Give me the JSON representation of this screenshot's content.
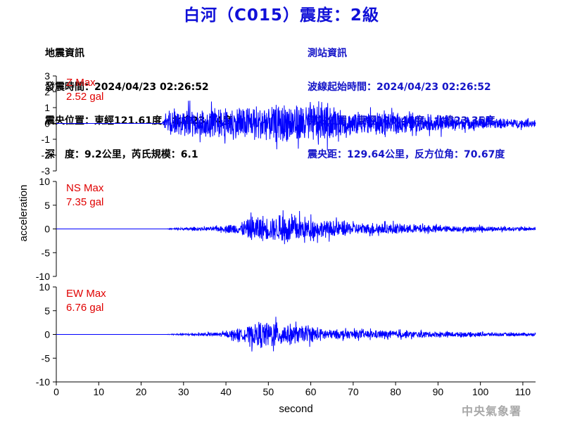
{
  "title": "白河（C015）震度：2級",
  "info_left": {
    "heading": "地震資訊",
    "origin_time": "發震時間：2024/04/23 02:26:52",
    "epicenter": "震央位置：東經121.61度，北緯23.74度",
    "depth_magnitude": "深　度：9.2公里，芮氏規模：6.1"
  },
  "info_right": {
    "heading": "測站資訊",
    "wave_start": "波線起始時間：2024/04/23 02:26:52",
    "station_location": "測站位置：東經120.41度，北緯23.35度",
    "distance_azimuth": "震央距：129.64公里，反方位角：70.67度"
  },
  "watermark": "中央氣象署",
  "colors": {
    "signal": "#0000ff",
    "label": "#e00000",
    "title": "#1010d8",
    "station_info": "#1414c8"
  },
  "chart_data": {
    "type": "line",
    "xlabel": "second",
    "ylabel": "acceleration",
    "xlim": [
      0,
      113
    ],
    "xticks": [
      0,
      10,
      20,
      30,
      40,
      50,
      60,
      70,
      80,
      90,
      100,
      110
    ],
    "panels": [
      {
        "component": "Z",
        "max_label": "Z Max",
        "max_value": "2.52 gal",
        "ylim": [
          -3,
          3
        ],
        "yticks": [
          3,
          2,
          1,
          0,
          -1,
          -2,
          -3
        ],
        "envelope": [
          {
            "t": 0,
            "amp": 0
          },
          {
            "t": 24.8,
            "amp": 0
          },
          {
            "t": 26,
            "amp": 0.9
          },
          {
            "t": 28,
            "amp": 1.5
          },
          {
            "t": 32,
            "amp": 1.7
          },
          {
            "t": 36,
            "amp": 1.7
          },
          {
            "t": 44,
            "amp": 1.9
          },
          {
            "t": 50,
            "amp": 2.1
          },
          {
            "t": 56,
            "amp": 2.2
          },
          {
            "t": 62,
            "amp": 2.3
          },
          {
            "t": 66,
            "amp": 1.6
          },
          {
            "t": 75,
            "amp": 1.2
          },
          {
            "t": 85,
            "amp": 1.1
          },
          {
            "t": 95,
            "amp": 0.8
          },
          {
            "t": 105,
            "amp": 0.55
          },
          {
            "t": 113,
            "amp": 0.45
          }
        ]
      },
      {
        "component": "NS",
        "max_label": "NS Max",
        "max_value": "7.35 gal",
        "ylim": [
          -10,
          10
        ],
        "yticks": [
          10,
          5,
          0,
          -5,
          -10
        ],
        "envelope": [
          {
            "t": 0,
            "amp": 0
          },
          {
            "t": 26,
            "amp": 0
          },
          {
            "t": 28,
            "amp": 0.4
          },
          {
            "t": 35,
            "amp": 0.7
          },
          {
            "t": 40,
            "amp": 1.2
          },
          {
            "t": 44,
            "amp": 2.8
          },
          {
            "t": 46,
            "amp": 5.2
          },
          {
            "t": 50,
            "amp": 4.8
          },
          {
            "t": 54,
            "amp": 5.5
          },
          {
            "t": 60,
            "amp": 3.8
          },
          {
            "t": 66,
            "amp": 3.2
          },
          {
            "t": 72,
            "amp": 2.3
          },
          {
            "t": 80,
            "amp": 2.0
          },
          {
            "t": 90,
            "amp": 1.3
          },
          {
            "t": 100,
            "amp": 1.0
          },
          {
            "t": 113,
            "amp": 0.7
          }
        ]
      },
      {
        "component": "EW",
        "max_label": "EW Max",
        "max_value": "6.76 gal",
        "ylim": [
          -10,
          10
        ],
        "yticks": [
          10,
          5,
          0,
          -5,
          -10
        ],
        "envelope": [
          {
            "t": 0,
            "amp": 0
          },
          {
            "t": 26,
            "amp": 0
          },
          {
            "t": 28,
            "amp": 0.3
          },
          {
            "t": 35,
            "amp": 0.6
          },
          {
            "t": 40,
            "amp": 1.0
          },
          {
            "t": 44,
            "amp": 2.6
          },
          {
            "t": 47,
            "amp": 4.8
          },
          {
            "t": 51,
            "amp": 5.4
          },
          {
            "t": 55,
            "amp": 3.8
          },
          {
            "t": 60,
            "amp": 3.0
          },
          {
            "t": 65,
            "amp": 2.0
          },
          {
            "t": 72,
            "amp": 1.6
          },
          {
            "t": 80,
            "amp": 1.5
          },
          {
            "t": 90,
            "amp": 1.1
          },
          {
            "t": 100,
            "amp": 0.8
          },
          {
            "t": 113,
            "amp": 0.6
          }
        ]
      }
    ]
  }
}
